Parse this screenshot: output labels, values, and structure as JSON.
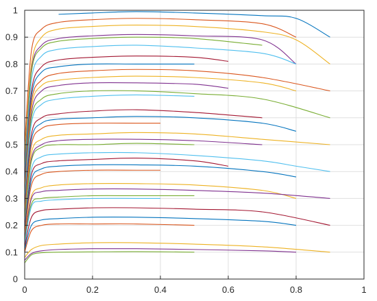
{
  "chart_data": {
    "type": "line",
    "xlim": [
      0,
      1
    ],
    "ylim": [
      0,
      1
    ],
    "xticks": [
      "0",
      "0.2",
      "0.4",
      "0.6",
      "0.8",
      "1"
    ],
    "yticks": [
      "0",
      "0.1",
      "0.2",
      "0.3",
      "0.4",
      "0.5",
      "0.6",
      "0.7",
      "0.8",
      "0.9",
      "1"
    ],
    "grid": true,
    "legend": "none",
    "color_cycle": [
      "#0072BD",
      "#D95319",
      "#EDB120",
      "#7E2F8E",
      "#77AC30",
      "#4DBEEE",
      "#A2142F"
    ],
    "series": [
      {
        "x": [
          0.1,
          0.2,
          0.33,
          0.5,
          0.7,
          0.8,
          0.9
        ],
        "y": [
          0.985,
          0.99,
          0.995,
          0.99,
          0.98,
          0.97,
          0.9
        ]
      },
      {
        "x": [
          0.0,
          0.02,
          0.05,
          0.1,
          0.2,
          0.33,
          0.5,
          0.7,
          0.8
        ],
        "y": [
          0.5,
          0.85,
          0.93,
          0.955,
          0.965,
          0.97,
          0.965,
          0.95,
          0.9
        ]
      },
      {
        "x": [
          0.0,
          0.02,
          0.05,
          0.1,
          0.2,
          0.33,
          0.5,
          0.7,
          0.8,
          0.9
        ],
        "y": [
          0.45,
          0.8,
          0.9,
          0.93,
          0.94,
          0.945,
          0.94,
          0.92,
          0.89,
          0.8
        ]
      },
      {
        "x": [
          0.0,
          0.02,
          0.05,
          0.1,
          0.2,
          0.33,
          0.5,
          0.7,
          0.8
        ],
        "y": [
          0.42,
          0.78,
          0.87,
          0.895,
          0.905,
          0.91,
          0.905,
          0.89,
          0.8
        ]
      },
      {
        "x": [
          0.0,
          0.02,
          0.05,
          0.1,
          0.2,
          0.33,
          0.5,
          0.7
        ],
        "y": [
          0.4,
          0.77,
          0.86,
          0.885,
          0.895,
          0.9,
          0.895,
          0.87
        ]
      },
      {
        "x": [
          0.0,
          0.02,
          0.05,
          0.1,
          0.2,
          0.33,
          0.5,
          0.7,
          0.8
        ],
        "y": [
          0.38,
          0.74,
          0.83,
          0.855,
          0.865,
          0.87,
          0.86,
          0.84,
          0.8
        ]
      },
      {
        "x": [
          0.0,
          0.02,
          0.05,
          0.1,
          0.2,
          0.33,
          0.5,
          0.6
        ],
        "y": [
          0.36,
          0.7,
          0.79,
          0.815,
          0.825,
          0.83,
          0.825,
          0.81
        ]
      },
      {
        "x": [
          0.0,
          0.02,
          0.05,
          0.1,
          0.2,
          0.33,
          0.5
        ],
        "y": [
          0.35,
          0.68,
          0.77,
          0.79,
          0.8,
          0.8,
          0.8
        ]
      },
      {
        "x": [
          0.0,
          0.02,
          0.05,
          0.1,
          0.2,
          0.33,
          0.5,
          0.7,
          0.9
        ],
        "y": [
          0.33,
          0.66,
          0.74,
          0.765,
          0.775,
          0.78,
          0.775,
          0.75,
          0.7
        ]
      },
      {
        "x": [
          0.0,
          0.02,
          0.05,
          0.1,
          0.2,
          0.33,
          0.5,
          0.7,
          0.8
        ],
        "y": [
          0.32,
          0.64,
          0.72,
          0.74,
          0.75,
          0.755,
          0.75,
          0.73,
          0.7
        ]
      },
      {
        "x": [
          0.0,
          0.02,
          0.05,
          0.1,
          0.2,
          0.33,
          0.5,
          0.6
        ],
        "y": [
          0.31,
          0.62,
          0.7,
          0.72,
          0.73,
          0.73,
          0.725,
          0.71
        ]
      },
      {
        "x": [
          0.0,
          0.02,
          0.05,
          0.1,
          0.2,
          0.33,
          0.5,
          0.7,
          0.9
        ],
        "y": [
          0.3,
          0.6,
          0.67,
          0.69,
          0.7,
          0.7,
          0.69,
          0.67,
          0.6
        ]
      },
      {
        "x": [
          0.0,
          0.02,
          0.05,
          0.1,
          0.2,
          0.33,
          0.5
        ],
        "y": [
          0.29,
          0.58,
          0.65,
          0.67,
          0.68,
          0.685,
          0.68
        ]
      },
      {
        "x": [
          0.0,
          0.02,
          0.05,
          0.1,
          0.2,
          0.33,
          0.5,
          0.7
        ],
        "y": [
          0.27,
          0.54,
          0.6,
          0.615,
          0.625,
          0.63,
          0.62,
          0.6
        ]
      },
      {
        "x": [
          0.0,
          0.02,
          0.05,
          0.1,
          0.2,
          0.33,
          0.5,
          0.7,
          0.8
        ],
        "y": [
          0.26,
          0.52,
          0.58,
          0.595,
          0.6,
          0.605,
          0.6,
          0.58,
          0.55
        ]
      },
      {
        "x": [
          0.0,
          0.02,
          0.05,
          0.1,
          0.2,
          0.33,
          0.4
        ],
        "y": [
          0.25,
          0.5,
          0.56,
          0.575,
          0.58,
          0.58,
          0.58
        ]
      },
      {
        "x": [
          0.0,
          0.02,
          0.05,
          0.1,
          0.2,
          0.33,
          0.5,
          0.7,
          0.9
        ],
        "y": [
          0.24,
          0.47,
          0.52,
          0.535,
          0.54,
          0.545,
          0.54,
          0.52,
          0.5
        ]
      },
      {
        "x": [
          0.0,
          0.02,
          0.05,
          0.1,
          0.2,
          0.33,
          0.5,
          0.7
        ],
        "y": [
          0.23,
          0.45,
          0.5,
          0.515,
          0.52,
          0.52,
          0.515,
          0.5
        ]
      },
      {
        "x": [
          0.0,
          0.02,
          0.05,
          0.1,
          0.2,
          0.33,
          0.5
        ],
        "y": [
          0.22,
          0.44,
          0.49,
          0.5,
          0.5,
          0.505,
          0.5
        ]
      },
      {
        "x": [
          0.0,
          0.02,
          0.05,
          0.1,
          0.2,
          0.33,
          0.5,
          0.7,
          0.8,
          0.9
        ],
        "y": [
          0.2,
          0.41,
          0.455,
          0.465,
          0.47,
          0.47,
          0.46,
          0.44,
          0.42,
          0.4
        ]
      },
      {
        "x": [
          0.0,
          0.02,
          0.05,
          0.1,
          0.2,
          0.33,
          0.5,
          0.6
        ],
        "y": [
          0.19,
          0.39,
          0.43,
          0.44,
          0.445,
          0.45,
          0.44,
          0.42
        ]
      },
      {
        "x": [
          0.0,
          0.02,
          0.05,
          0.1,
          0.2,
          0.33,
          0.5,
          0.7,
          0.8
        ],
        "y": [
          0.18,
          0.37,
          0.41,
          0.42,
          0.425,
          0.425,
          0.42,
          0.4,
          0.38
        ]
      },
      {
        "x": [
          0.0,
          0.02,
          0.05,
          0.1,
          0.2,
          0.33,
          0.4
        ],
        "y": [
          0.17,
          0.35,
          0.39,
          0.4,
          0.405,
          0.405,
          0.405
        ]
      },
      {
        "x": [
          0.0,
          0.02,
          0.05,
          0.1,
          0.2,
          0.33,
          0.5,
          0.7,
          0.8
        ],
        "y": [
          0.16,
          0.31,
          0.34,
          0.35,
          0.355,
          0.355,
          0.35,
          0.33,
          0.3
        ]
      },
      {
        "x": [
          0.0,
          0.02,
          0.05,
          0.1,
          0.2,
          0.33,
          0.5,
          0.7,
          0.9
        ],
        "y": [
          0.15,
          0.3,
          0.325,
          0.33,
          0.335,
          0.335,
          0.33,
          0.32,
          0.3
        ]
      },
      {
        "x": [
          0.0,
          0.02,
          0.05,
          0.1,
          0.2,
          0.33,
          0.5
        ],
        "y": [
          0.14,
          0.28,
          0.3,
          0.305,
          0.31,
          0.31,
          0.31
        ]
      },
      {
        "x": [
          0.0,
          0.02,
          0.05,
          0.1,
          0.2,
          0.33,
          0.4
        ],
        "y": [
          0.13,
          0.27,
          0.29,
          0.295,
          0.3,
          0.3,
          0.3
        ]
      },
      {
        "x": [
          0.0,
          0.02,
          0.05,
          0.1,
          0.2,
          0.33,
          0.5,
          0.7,
          0.9
        ],
        "y": [
          0.12,
          0.23,
          0.255,
          0.26,
          0.265,
          0.265,
          0.26,
          0.25,
          0.2
        ]
      },
      {
        "x": [
          0.0,
          0.02,
          0.05,
          0.1,
          0.2,
          0.33,
          0.5,
          0.7,
          0.8
        ],
        "y": [
          0.11,
          0.2,
          0.22,
          0.225,
          0.23,
          0.23,
          0.225,
          0.215,
          0.2
        ]
      },
      {
        "x": [
          0.0,
          0.02,
          0.05,
          0.1,
          0.2,
          0.33,
          0.5
        ],
        "y": [
          0.1,
          0.18,
          0.2,
          0.205,
          0.205,
          0.205,
          0.2
        ]
      },
      {
        "x": [
          0.0,
          0.02,
          0.05,
          0.1,
          0.2,
          0.33,
          0.5,
          0.7,
          0.9
        ],
        "y": [
          0.08,
          0.11,
          0.125,
          0.13,
          0.135,
          0.135,
          0.13,
          0.12,
          0.1
        ]
      },
      {
        "x": [
          0.0,
          0.02,
          0.05,
          0.1,
          0.2,
          0.33,
          0.5,
          0.7,
          0.8
        ],
        "y": [
          0.07,
          0.095,
          0.105,
          0.11,
          0.113,
          0.113,
          0.11,
          0.105,
          0.1
        ]
      },
      {
        "x": [
          0.0,
          0.02,
          0.05,
          0.1,
          0.2,
          0.33,
          0.5
        ],
        "y": [
          0.06,
          0.09,
          0.098,
          0.1,
          0.101,
          0.102,
          0.1
        ]
      },
      {
        "x": [
          0.0,
          0.5,
          0.9
        ],
        "y": [
          0.0,
          0.0,
          0.0
        ]
      },
      {
        "x": [
          0.02,
          0.1,
          0.2,
          0.33
        ],
        "y": [
          1.0,
          1.0,
          1.0,
          1.0
        ]
      }
    ]
  }
}
